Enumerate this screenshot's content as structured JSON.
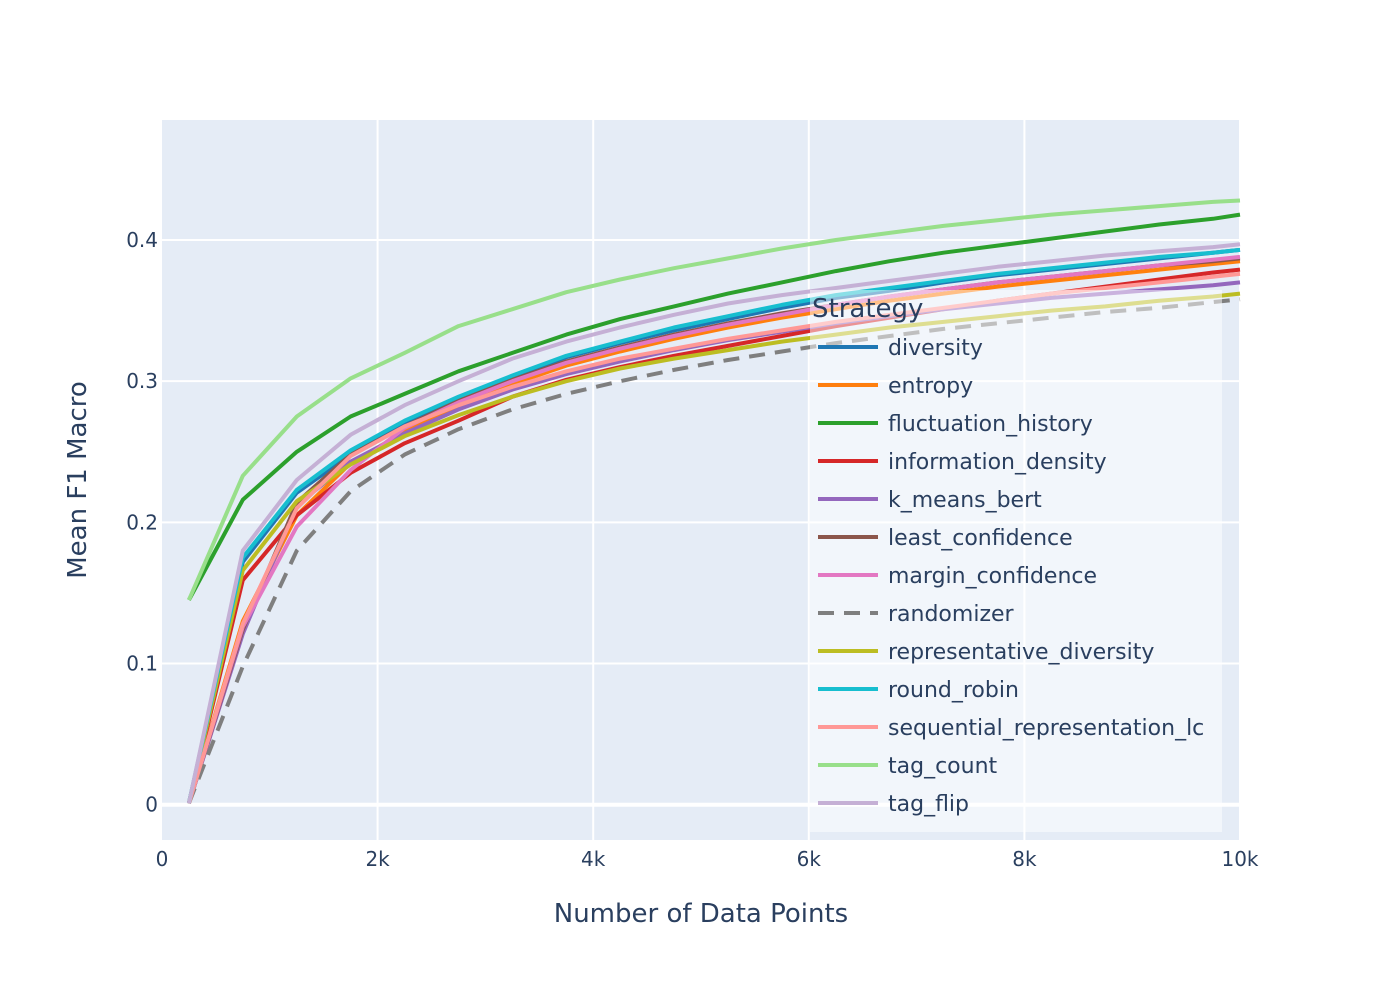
{
  "chart_data": {
    "type": "line",
    "xlabel": "Number of Data Points",
    "ylabel": "Mean F1 Macro",
    "xlim": [
      0,
      10000
    ],
    "ylim": [
      -0.025,
      0.485
    ],
    "grid": true,
    "x_ticks": [
      0,
      2000,
      4000,
      6000,
      8000,
      10000
    ],
    "x_tick_labels": [
      "0",
      "2k",
      "4k",
      "6k",
      "8k",
      "10k"
    ],
    "y_ticks": [
      0,
      0.1,
      0.2,
      0.3,
      0.4
    ],
    "y_tick_labels": [
      "0",
      "0.1",
      "0.2",
      "0.3",
      "0.4"
    ],
    "legend": {
      "title": "Strategy",
      "placement": "center-right"
    },
    "x": [
      250,
      750,
      1250,
      1750,
      2250,
      2750,
      3250,
      3750,
      4250,
      4750,
      5250,
      5750,
      6250,
      6750,
      7250,
      7750,
      8250,
      8750,
      9250,
      9750,
      10000
    ],
    "series": [
      {
        "name": "diversity",
        "color": "#1f77b4",
        "dash": false,
        "values": [
          0.001,
          0.172,
          0.221,
          0.248,
          0.269,
          0.288,
          0.303,
          0.317,
          0.327,
          0.336,
          0.344,
          0.352,
          0.359,
          0.364,
          0.37,
          0.375,
          0.379,
          0.383,
          0.387,
          0.391,
          0.393
        ]
      },
      {
        "name": "entropy",
        "color": "#ff7f0e",
        "dash": false,
        "values": [
          0.001,
          0.13,
          0.205,
          0.242,
          0.264,
          0.282,
          0.298,
          0.311,
          0.321,
          0.33,
          0.338,
          0.345,
          0.351,
          0.357,
          0.362,
          0.367,
          0.371,
          0.375,
          0.379,
          0.383,
          0.385
        ]
      },
      {
        "name": "fluctuation_history",
        "color": "#2ca02c",
        "dash": false,
        "values": [
          0.145,
          0.216,
          0.25,
          0.275,
          0.291,
          0.307,
          0.32,
          0.333,
          0.344,
          0.353,
          0.362,
          0.37,
          0.378,
          0.385,
          0.391,
          0.396,
          0.401,
          0.406,
          0.411,
          0.415,
          0.418
        ]
      },
      {
        "name": "information_density",
        "color": "#d62728",
        "dash": false,
        "values": [
          0.001,
          0.159,
          0.205,
          0.235,
          0.256,
          0.272,
          0.289,
          0.301,
          0.31,
          0.318,
          0.325,
          0.332,
          0.339,
          0.345,
          0.351,
          0.357,
          0.362,
          0.367,
          0.372,
          0.377,
          0.379
        ]
      },
      {
        "name": "k_means_bert",
        "color": "#9467bd",
        "dash": false,
        "values": [
          0.001,
          0.121,
          0.212,
          0.243,
          0.263,
          0.28,
          0.294,
          0.305,
          0.314,
          0.322,
          0.329,
          0.335,
          0.341,
          0.346,
          0.351,
          0.355,
          0.359,
          0.362,
          0.365,
          0.368,
          0.37
        ]
      },
      {
        "name": "least_confidence",
        "color": "#8c564b",
        "dash": false,
        "values": [
          0.001,
          0.124,
          0.214,
          0.248,
          0.268,
          0.286,
          0.301,
          0.314,
          0.324,
          0.333,
          0.341,
          0.348,
          0.354,
          0.36,
          0.365,
          0.37,
          0.374,
          0.378,
          0.382,
          0.385,
          0.387
        ]
      },
      {
        "name": "margin_confidence",
        "color": "#e377c2",
        "dash": false,
        "values": [
          0.001,
          0.126,
          0.197,
          0.237,
          0.267,
          0.285,
          0.3,
          0.313,
          0.323,
          0.332,
          0.34,
          0.347,
          0.354,
          0.36,
          0.365,
          0.37,
          0.374,
          0.378,
          0.382,
          0.386,
          0.388
        ]
      },
      {
        "name": "randomizer",
        "color": "#7f7f7f",
        "dash": true,
        "values": [
          0.001,
          0.098,
          0.18,
          0.222,
          0.248,
          0.266,
          0.28,
          0.291,
          0.3,
          0.308,
          0.315,
          0.321,
          0.327,
          0.332,
          0.337,
          0.341,
          0.345,
          0.349,
          0.352,
          0.356,
          0.358
        ]
      },
      {
        "name": "representative_diversity",
        "color": "#bcbd22",
        "dash": false,
        "values": [
          0.001,
          0.166,
          0.215,
          0.241,
          0.261,
          0.276,
          0.289,
          0.3,
          0.309,
          0.316,
          0.322,
          0.328,
          0.333,
          0.338,
          0.342,
          0.346,
          0.35,
          0.353,
          0.357,
          0.36,
          0.362
        ]
      },
      {
        "name": "round_robin",
        "color": "#17becf",
        "dash": false,
        "values": [
          0.001,
          0.175,
          0.223,
          0.251,
          0.272,
          0.289,
          0.304,
          0.318,
          0.328,
          0.338,
          0.346,
          0.354,
          0.361,
          0.366,
          0.371,
          0.376,
          0.38,
          0.384,
          0.388,
          0.391,
          0.393
        ]
      },
      {
        "name": "sequential_representation_lc",
        "color": "#ff9896",
        "dash": false,
        "values": [
          0.001,
          0.128,
          0.21,
          0.247,
          0.268,
          0.283,
          0.296,
          0.307,
          0.316,
          0.323,
          0.33,
          0.336,
          0.342,
          0.347,
          0.352,
          0.357,
          0.362,
          0.366,
          0.37,
          0.374,
          0.376
        ]
      },
      {
        "name": "tag_count",
        "color": "#98df8a",
        "dash": false,
        "values": [
          0.145,
          0.233,
          0.275,
          0.302,
          0.32,
          0.339,
          0.351,
          0.363,
          0.372,
          0.38,
          0.387,
          0.394,
          0.4,
          0.405,
          0.41,
          0.414,
          0.418,
          0.421,
          0.424,
          0.427,
          0.428
        ]
      },
      {
        "name": "tag_flip",
        "color": "#c5b0d5",
        "dash": false,
        "values": [
          0.001,
          0.18,
          0.23,
          0.262,
          0.283,
          0.3,
          0.316,
          0.328,
          0.338,
          0.347,
          0.355,
          0.361,
          0.366,
          0.371,
          0.376,
          0.381,
          0.385,
          0.389,
          0.392,
          0.395,
          0.397
        ]
      }
    ]
  }
}
